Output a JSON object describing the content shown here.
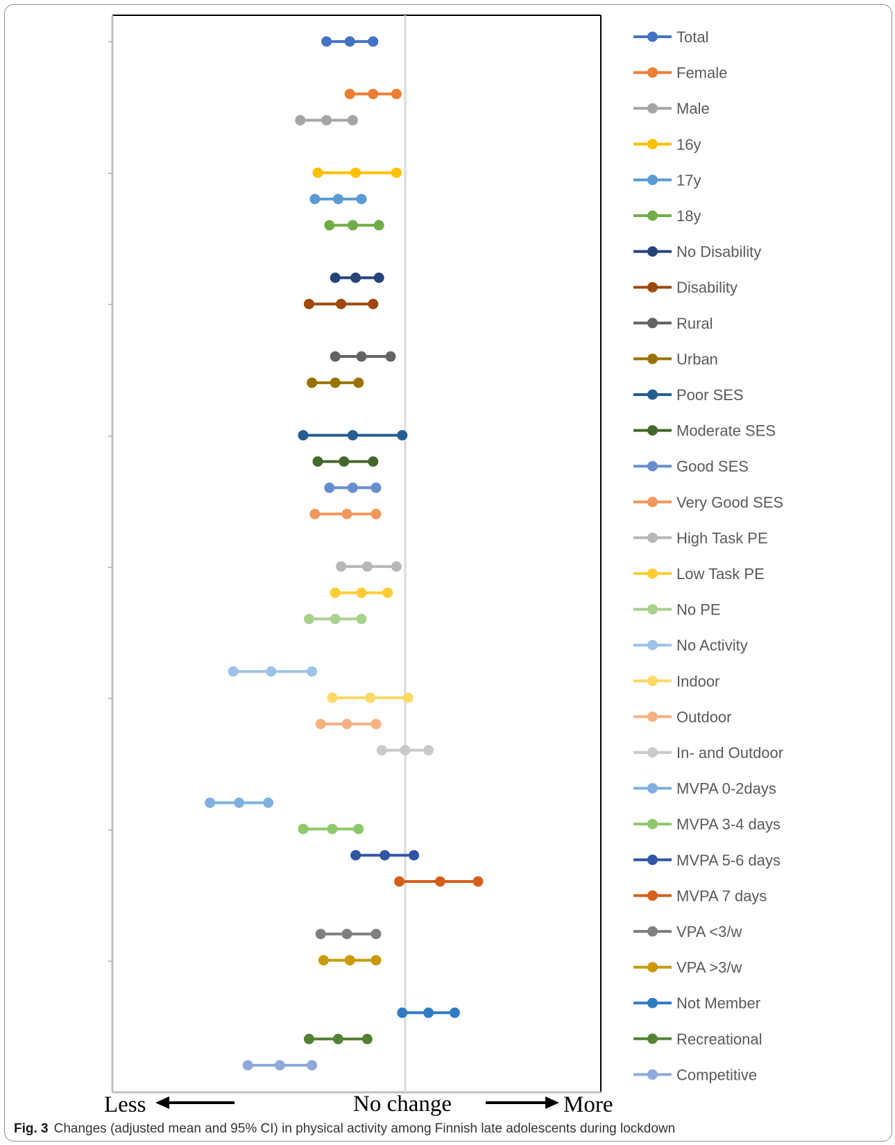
{
  "caption": {
    "label": "Fig. 3",
    "text": "Changes (adjusted mean and 95% CI) in physical activity among Finnish late adolescents during lockdown"
  },
  "axis": {
    "left_label": "Less",
    "center_label": "No change",
    "right_label": "More"
  },
  "chart_data": {
    "type": "scatter",
    "title": "",
    "xlabel": "",
    "ylabel": "",
    "reference_line": 0,
    "xlim": [
      -1,
      0.67
    ],
    "grid": false,
    "legend_position": "right",
    "series": [
      {
        "name": "Total",
        "color": "#4472C4",
        "row": 1,
        "lower": -0.27,
        "mean": -0.19,
        "upper": -0.11
      },
      {
        "name": "Female",
        "color": "#ED7D31",
        "row": 3,
        "lower": -0.19,
        "mean": -0.11,
        "upper": -0.03
      },
      {
        "name": "Male",
        "color": "#A5A5A5",
        "row": 4,
        "lower": -0.36,
        "mean": -0.27,
        "upper": -0.18
      },
      {
        "name": "16y",
        "color": "#FFC000",
        "row": 6,
        "lower": -0.3,
        "mean": -0.17,
        "upper": -0.03
      },
      {
        "name": "17y",
        "color": "#5B9BD5",
        "row": 7,
        "lower": -0.31,
        "mean": -0.23,
        "upper": -0.15
      },
      {
        "name": "18y",
        "color": "#70AD47",
        "row": 8,
        "lower": -0.26,
        "mean": -0.18,
        "upper": -0.09
      },
      {
        "name": "No Disability",
        "color": "#264478",
        "row": 10,
        "lower": -0.24,
        "mean": -0.17,
        "upper": -0.09
      },
      {
        "name": "Disability",
        "color": "#9E480E",
        "row": 11,
        "lower": -0.33,
        "mean": -0.22,
        "upper": -0.11
      },
      {
        "name": "Rural",
        "color": "#636363",
        "row": 13,
        "lower": -0.24,
        "mean": -0.15,
        "upper": -0.05
      },
      {
        "name": "Urban",
        "color": "#997300",
        "row": 14,
        "lower": -0.32,
        "mean": -0.24,
        "upper": -0.16
      },
      {
        "name": "Poor SES",
        "color": "#255E91",
        "row": 16,
        "lower": -0.35,
        "mean": -0.18,
        "upper": -0.01
      },
      {
        "name": "Moderate SES",
        "color": "#43682B",
        "row": 17,
        "lower": -0.3,
        "mean": -0.21,
        "upper": -0.11
      },
      {
        "name": "Good SES",
        "color": "#698ED0",
        "row": 18,
        "lower": -0.26,
        "mean": -0.18,
        "upper": -0.1
      },
      {
        "name": "Very Good SES",
        "color": "#F1975A",
        "row": 19,
        "lower": -0.31,
        "mean": -0.2,
        "upper": -0.1
      },
      {
        "name": "High Task PE",
        "color": "#B7B7B7",
        "row": 21,
        "lower": -0.22,
        "mean": -0.13,
        "upper": -0.03
      },
      {
        "name": "Low Task PE",
        "color": "#FFCD33",
        "row": 22,
        "lower": -0.24,
        "mean": -0.15,
        "upper": -0.06
      },
      {
        "name": "No PE",
        "color": "#A9D18E",
        "row": 23,
        "lower": -0.33,
        "mean": -0.24,
        "upper": -0.15
      },
      {
        "name": "No Activity",
        "color": "#9DC3E6",
        "row": 25,
        "lower": -0.59,
        "mean": -0.46,
        "upper": -0.32
      },
      {
        "name": "Indoor",
        "color": "#FFD966",
        "row": 26,
        "lower": -0.25,
        "mean": -0.12,
        "upper": 0.01
      },
      {
        "name": "Outdoor",
        "color": "#F4B183",
        "row": 27,
        "lower": -0.29,
        "mean": -0.2,
        "upper": -0.1
      },
      {
        "name": "In- and Outdoor",
        "color": "#C9C9C9",
        "row": 28,
        "lower": -0.08,
        "mean": 0.0,
        "upper": 0.08
      },
      {
        "name": "MVPA 0-2days",
        "color": "#7FB0E0",
        "row": 30,
        "lower": -0.67,
        "mean": -0.57,
        "upper": -0.47
      },
      {
        "name": "MVPA 3-4 days",
        "color": "#8DC86B",
        "row": 31,
        "lower": -0.35,
        "mean": -0.25,
        "upper": -0.16
      },
      {
        "name": "MVPA 5-6 days",
        "color": "#2F55A4",
        "row": 32,
        "lower": -0.17,
        "mean": -0.07,
        "upper": 0.03
      },
      {
        "name": "MVPA 7 days",
        "color": "#D5601C",
        "row": 33,
        "lower": -0.02,
        "mean": 0.12,
        "upper": 0.25
      },
      {
        "name": "VPA <3/w",
        "color": "#7F7F7F",
        "row": 35,
        "lower": -0.29,
        "mean": -0.2,
        "upper": -0.1
      },
      {
        "name": "VPA >3/w",
        "color": "#C99A06",
        "row": 36,
        "lower": -0.28,
        "mean": -0.19,
        "upper": -0.1
      },
      {
        "name": "Not Member",
        "color": "#2E7CC4",
        "row": 38,
        "lower": -0.01,
        "mean": 0.08,
        "upper": 0.17
      },
      {
        "name": "Recreational",
        "color": "#548235",
        "row": 39,
        "lower": -0.33,
        "mean": -0.23,
        "upper": -0.13
      },
      {
        "name": "Competitive",
        "color": "#8FA9DB",
        "row": 40,
        "lower": -0.54,
        "mean": -0.43,
        "upper": -0.32
      }
    ]
  }
}
